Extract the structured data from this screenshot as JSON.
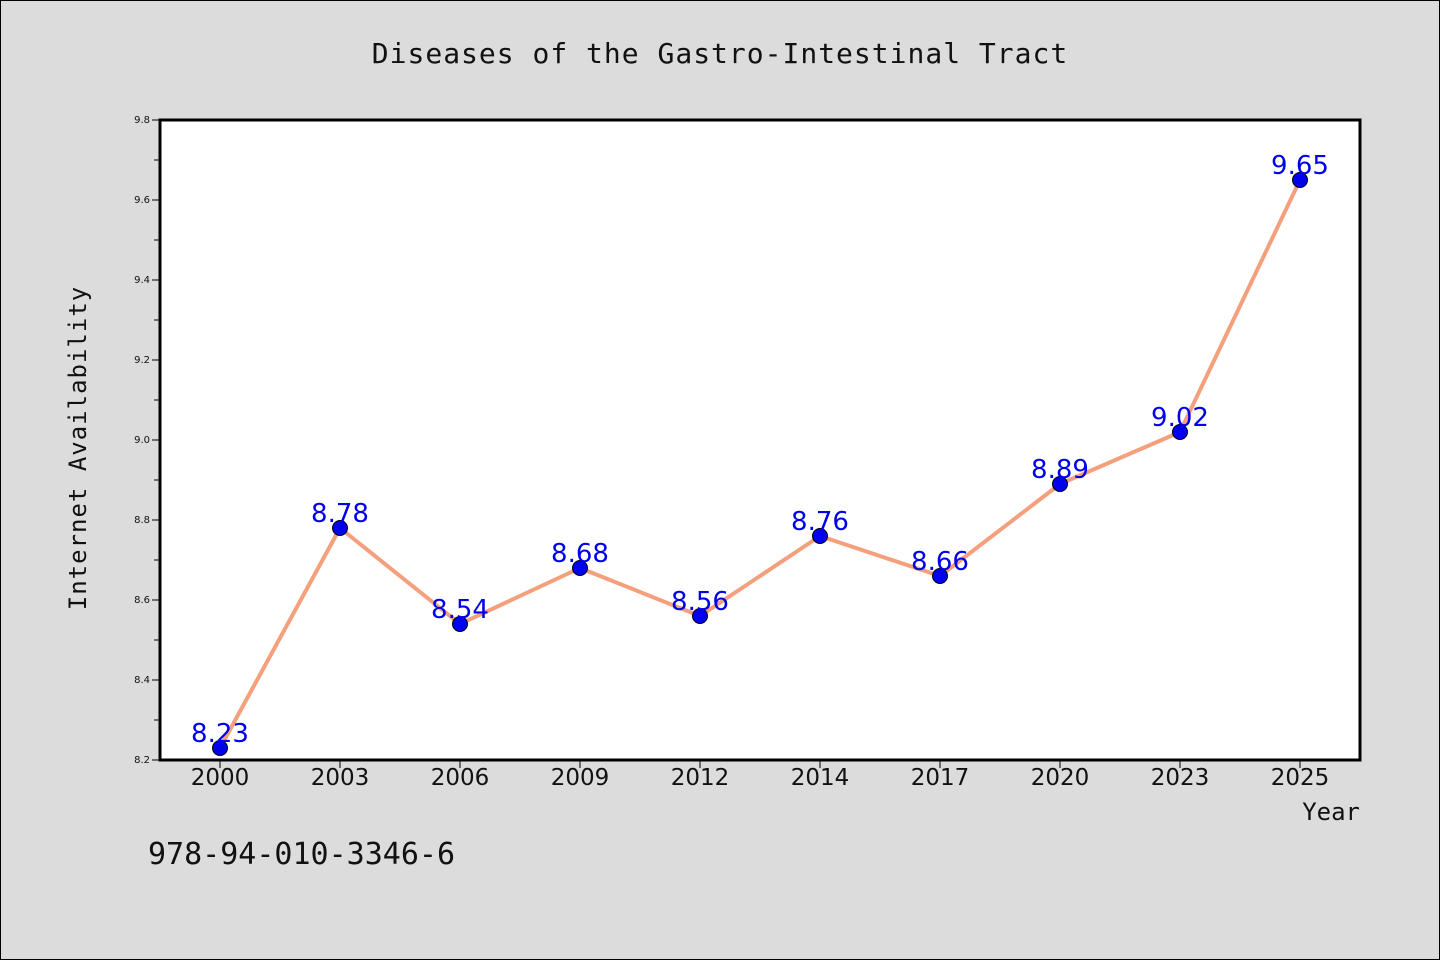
{
  "chart_data": {
    "type": "line",
    "title": "Diseases of the Gastro-Intestinal Tract",
    "xlabel": "Year",
    "ylabel": "Internet Availability",
    "categories": [
      "2000",
      "2003",
      "2006",
      "2009",
      "2012",
      "2014",
      "2017",
      "2020",
      "2023",
      "2025"
    ],
    "values": [
      8.23,
      8.78,
      8.54,
      8.68,
      8.56,
      8.76,
      8.66,
      8.89,
      9.02,
      9.65
    ],
    "data_labels": [
      "8.23",
      "8.78",
      "8.54",
      "8.68",
      "8.56",
      "8.76",
      "8.66",
      "8.89",
      "9.02",
      "9.65"
    ],
    "ylim": [
      8.2,
      9.8
    ],
    "yticks": [
      "8.2",
      "8.4",
      "8.6",
      "8.8",
      "9.0",
      "9.2",
      "9.4",
      "9.6",
      "9.8"
    ],
    "ytick_values": [
      8.2,
      8.4,
      8.6,
      8.8,
      9.0,
      9.2,
      9.4,
      9.6,
      9.8
    ],
    "grid": false,
    "line_color": "#f4a07c",
    "marker_color": "#0000ee",
    "label_color": "#0000ee"
  },
  "footer": {
    "isbn": "978-94-010-3346-6"
  }
}
